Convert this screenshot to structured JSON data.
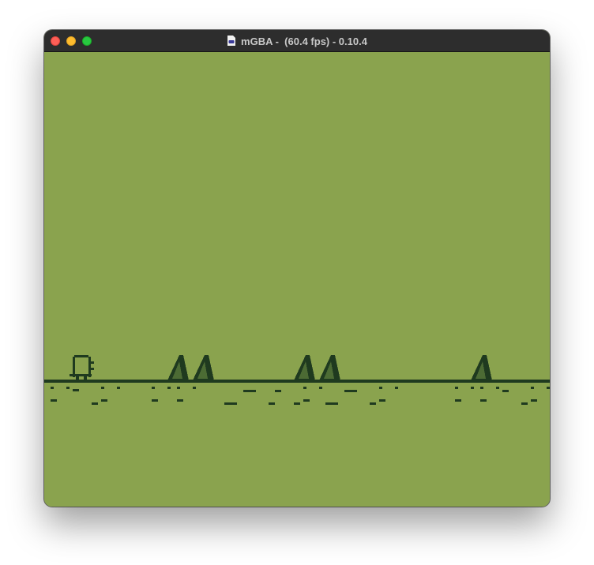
{
  "window": {
    "title": "mGBA -  (60.4 fps) - 0.10.4",
    "title_icon": "document-icon"
  },
  "screen": {
    "palette": {
      "background": "#8aa34e",
      "dark": "#1f3a1f",
      "mid": "#4c6b34"
    },
    "sprites": {
      "player": "dino-icon",
      "obstacle": "spike-icon"
    }
  }
}
